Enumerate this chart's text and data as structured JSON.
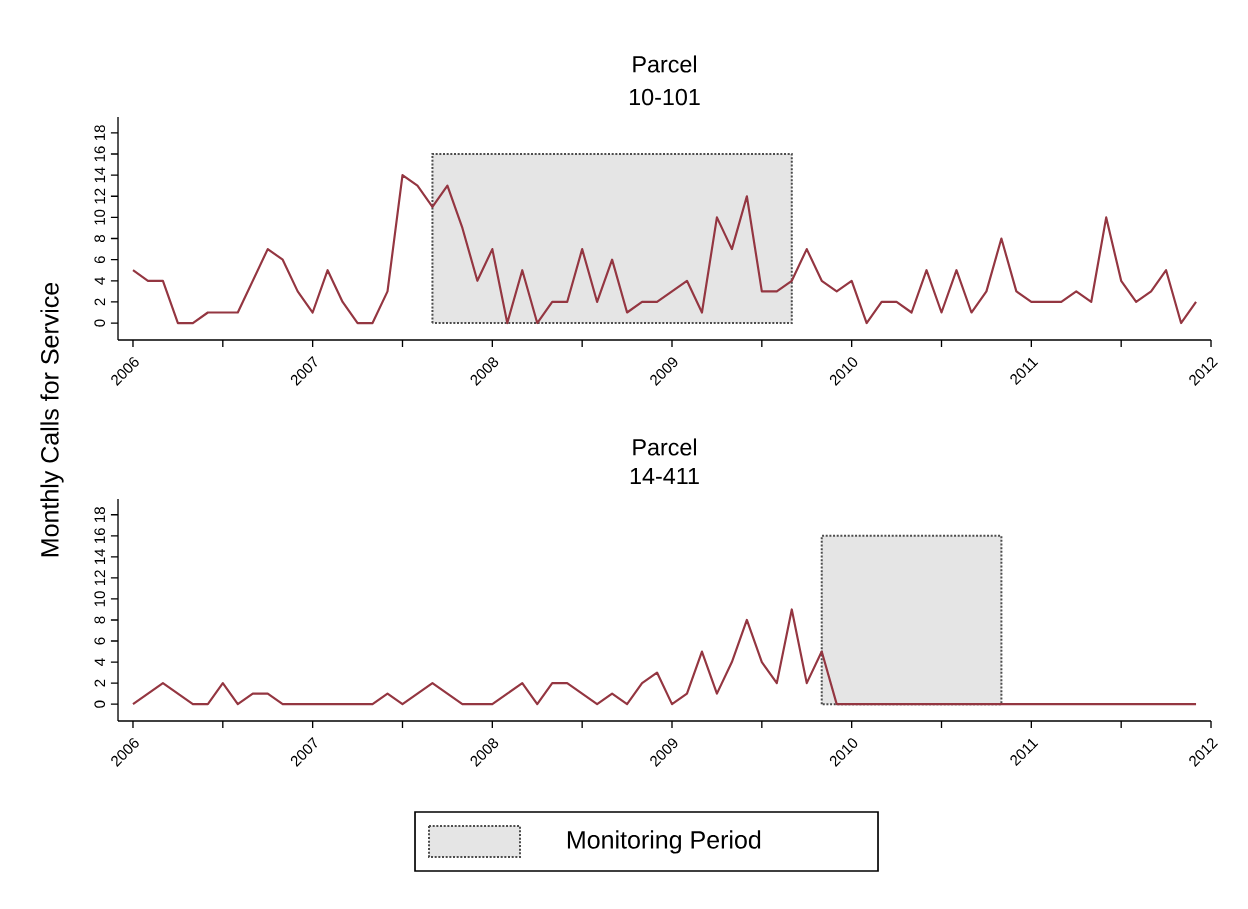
{
  "chart_data": [
    {
      "type": "line",
      "title": "Parcel",
      "subtitle": "10-101",
      "ylabel": "Monthly Calls for Service",
      "x": [
        "2006-01",
        "2006-02",
        "2006-03",
        "2006-04",
        "2006-05",
        "2006-06",
        "2006-07",
        "2006-08",
        "2006-09",
        "2006-10",
        "2006-11",
        "2006-12",
        "2007-01",
        "2007-02",
        "2007-03",
        "2007-04",
        "2007-05",
        "2007-06",
        "2007-07",
        "2007-08",
        "2007-09",
        "2007-10",
        "2007-11",
        "2007-12",
        "2008-01",
        "2008-02",
        "2008-03",
        "2008-04",
        "2008-05",
        "2008-06",
        "2008-07",
        "2008-08",
        "2008-09",
        "2008-10",
        "2008-11",
        "2008-12",
        "2009-01",
        "2009-02",
        "2009-03",
        "2009-04",
        "2009-05",
        "2009-06",
        "2009-07",
        "2009-08",
        "2009-09",
        "2009-10",
        "2009-11",
        "2009-12",
        "2010-01",
        "2010-02",
        "2010-03",
        "2010-04",
        "2010-05",
        "2010-06",
        "2010-07",
        "2010-08",
        "2010-09",
        "2010-10",
        "2010-11",
        "2010-12",
        "2011-01",
        "2011-02",
        "2011-03",
        "2011-04",
        "2011-05",
        "2011-06",
        "2011-07",
        "2011-08",
        "2011-09",
        "2011-10",
        "2011-11",
        "2011-12"
      ],
      "series": [
        {
          "color": "#943641",
          "values": [
            5,
            4,
            4,
            0,
            0,
            1,
            1,
            1,
            4,
            7,
            6,
            3,
            1,
            5,
            2,
            0,
            0,
            3,
            14,
            13,
            11,
            13,
            9,
            4,
            7,
            0,
            5,
            0,
            2,
            2,
            7,
            2,
            6,
            1,
            2,
            2,
            3,
            4,
            1,
            10,
            7,
            12,
            3,
            3,
            4,
            7,
            4,
            3,
            4,
            0,
            2,
            2,
            1,
            5,
            1,
            5,
            1,
            3,
            8,
            3,
            2,
            2,
            2,
            3,
            2,
            10,
            4,
            2,
            3,
            5,
            0,
            2
          ]
        }
      ],
      "xlim": [
        "2005-12",
        "2012-01"
      ],
      "ylim": [
        -1.6,
        19.5
      ],
      "xticks": [
        "2006",
        {
          "value": "2006-07",
          "label": null
        },
        "2007",
        {
          "value": "2007-07",
          "label": null
        },
        "2008",
        {
          "value": "2008-07",
          "label": null
        },
        "2009",
        {
          "value": "2009-07",
          "label": null
        },
        "2010",
        {
          "value": "2010-07",
          "label": null
        },
        "2011",
        {
          "value": "2011-07",
          "label": null
        },
        "2012"
      ],
      "yticks": [
        0,
        2,
        4,
        6,
        8,
        10,
        12,
        14,
        16,
        18
      ],
      "bands": [
        {
          "axis": "x",
          "from": "2007-09",
          "to": "2009-09",
          "color": "#e5e5e5"
        }
      ],
      "marker": "none",
      "line_style": "solid",
      "legend": false
    },
    {
      "type": "line",
      "title": "Parcel",
      "subtitle": "14-411",
      "x": [
        "2006-01",
        "2006-02",
        "2006-03",
        "2006-04",
        "2006-05",
        "2006-06",
        "2006-07",
        "2006-08",
        "2006-09",
        "2006-10",
        "2006-11",
        "2006-12",
        "2007-01",
        "2007-02",
        "2007-03",
        "2007-04",
        "2007-05",
        "2007-06",
        "2007-07",
        "2007-08",
        "2007-09",
        "2007-10",
        "2007-11",
        "2007-12",
        "2008-01",
        "2008-02",
        "2008-03",
        "2008-04",
        "2008-05",
        "2008-06",
        "2008-07",
        "2008-08",
        "2008-09",
        "2008-10",
        "2008-11",
        "2008-12",
        "2009-01",
        "2009-02",
        "2009-03",
        "2009-04",
        "2009-05",
        "2009-06",
        "2009-07",
        "2009-08",
        "2009-09",
        "2009-10",
        "2009-11",
        "2009-12",
        "2010-01",
        "2010-02",
        "2010-03",
        "2010-04",
        "2010-05",
        "2010-06",
        "2010-07",
        "2010-08",
        "2010-09",
        "2010-10",
        "2010-11",
        "2010-12",
        "2011-01",
        "2011-02",
        "2011-03",
        "2011-04",
        "2011-05",
        "2011-06",
        "2011-07",
        "2011-08",
        "2011-09",
        "2011-10",
        "2011-11",
        "2011-12"
      ],
      "series": [
        {
          "color": "#943641",
          "values": [
            0,
            1,
            2,
            1,
            0,
            0,
            2,
            0,
            1,
            1,
            0,
            0,
            0,
            0,
            0,
            0,
            0,
            1,
            0,
            1,
            2,
            1,
            0,
            0,
            0,
            1,
            2,
            0,
            2,
            2,
            1,
            0,
            1,
            0,
            2,
            3,
            0,
            1,
            5,
            1,
            4,
            8,
            4,
            2,
            9,
            2,
            5,
            0,
            0,
            0,
            0,
            0,
            0,
            0,
            0,
            0,
            0,
            0,
            0,
            0,
            0,
            0,
            0,
            0,
            0,
            0,
            0,
            0,
            0,
            0,
            0,
            0
          ]
        }
      ],
      "xlim": [
        "2005-12",
        "2012-01"
      ],
      "ylim": [
        -1.6,
        19.5
      ],
      "xticks": [
        "2006",
        {
          "value": "2006-07",
          "label": null
        },
        "2007",
        {
          "value": "2007-07",
          "label": null
        },
        "2008",
        {
          "value": "2008-07",
          "label": null
        },
        "2009",
        {
          "value": "2009-07",
          "label": null
        },
        "2010",
        {
          "value": "2010-07",
          "label": null
        },
        "2011",
        {
          "value": "2011-07",
          "label": null
        },
        "2012"
      ],
      "yticks": [
        0,
        2,
        4,
        6,
        8,
        10,
        12,
        14,
        16,
        18
      ],
      "bands": [
        {
          "axis": "x",
          "from": "2009-11",
          "to": "2010-11",
          "color": "#e5e5e5",
          "label": "Monitoring Period"
        }
      ],
      "marker": "none",
      "line_style": "solid",
      "legend": "bottom"
    }
  ]
}
